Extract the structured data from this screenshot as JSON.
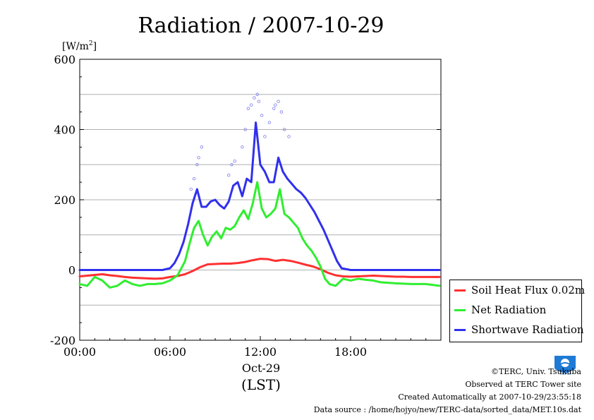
{
  "chart_data": {
    "type": "line",
    "title": "Radiation / 2007-10-29",
    "ylabel": "[W/m",
    "ylabel_sup": "2",
    "ylabel_close": "]",
    "xlabel": "Oct-29",
    "xlabel2": "(LST)",
    "ylim": [
      -200,
      600
    ],
    "xlim": [
      0,
      24
    ],
    "yticks": [
      -200,
      0,
      200,
      400,
      600
    ],
    "yticklabels": [
      "-200",
      "0",
      "200",
      "400",
      "600"
    ],
    "xticks": [
      0,
      6,
      12,
      18
    ],
    "xticklabels": [
      "00:00",
      "06:00",
      "12:00",
      "18:00"
    ],
    "grid": true,
    "legend_position": "bottom-right-outside",
    "series": [
      {
        "name": "Soil Heat Flux 0.02m",
        "color": "#ff3030",
        "x": [
          0,
          0.5,
          1,
          1.5,
          2,
          2.5,
          3,
          3.5,
          4,
          4.5,
          5,
          5.5,
          6,
          6.5,
          7,
          7.5,
          8,
          8.5,
          9,
          9.5,
          10,
          10.5,
          11,
          11.5,
          12,
          12.5,
          13,
          13.5,
          14,
          14.5,
          15,
          15.5,
          16,
          16.5,
          17,
          17.5,
          18,
          18.5,
          19,
          19.5,
          20,
          20.5,
          21,
          21.5,
          22,
          22.5,
          23,
          23.5,
          23.9
        ],
        "values": [
          -18,
          -16,
          -14,
          -12,
          -15,
          -17,
          -20,
          -22,
          -23,
          -24,
          -25,
          -24,
          -20,
          -17,
          -12,
          -3,
          8,
          16,
          17,
          18,
          18,
          20,
          23,
          28,
          32,
          31,
          26,
          29,
          26,
          21,
          15,
          10,
          2,
          -8,
          -15,
          -18,
          -19,
          -18,
          -17,
          -16,
          -17,
          -18,
          -19,
          -19,
          -20,
          -20,
          -20,
          -20,
          -20
        ]
      },
      {
        "name": "Net Radiation",
        "color": "#30ee30",
        "x": [
          0,
          0.5,
          1,
          1.5,
          2,
          2.5,
          3,
          3.5,
          4,
          4.5,
          5,
          5.5,
          6,
          6.5,
          7,
          7.3,
          7.6,
          7.9,
          8.2,
          8.5,
          8.8,
          9.1,
          9.4,
          9.7,
          10,
          10.3,
          10.6,
          10.9,
          11.2,
          11.5,
          11.8,
          12.1,
          12.4,
          12.7,
          13,
          13.3,
          13.6,
          13.9,
          14.2,
          14.5,
          14.8,
          15.1,
          15.4,
          15.7,
          16,
          16.3,
          16.6,
          17,
          17.5,
          18,
          18.5,
          19,
          19.5,
          20,
          21,
          22,
          23,
          23.9
        ],
        "values": [
          -40,
          -45,
          -20,
          -30,
          -50,
          -45,
          -30,
          -40,
          -45,
          -40,
          -40,
          -38,
          -30,
          -15,
          25,
          75,
          120,
          140,
          100,
          70,
          95,
          110,
          90,
          120,
          115,
          125,
          150,
          170,
          145,
          190,
          250,
          175,
          150,
          160,
          175,
          230,
          160,
          150,
          135,
          120,
          90,
          70,
          55,
          35,
          10,
          -25,
          -40,
          -45,
          -25,
          -30,
          -25,
          -28,
          -30,
          -35,
          -38,
          -40,
          -40,
          -45
        ]
      },
      {
        "name": "Shortwave Radiation",
        "color": "#3030ee",
        "x": [
          0,
          1,
          2,
          3,
          4,
          5,
          5.5,
          6,
          6.3,
          6.6,
          6.9,
          7.2,
          7.5,
          7.8,
          8.1,
          8.4,
          8.7,
          9,
          9.3,
          9.6,
          9.9,
          10.2,
          10.5,
          10.8,
          11.1,
          11.4,
          11.7,
          12,
          12.3,
          12.6,
          12.9,
          13.2,
          13.5,
          13.8,
          14.1,
          14.4,
          14.7,
          15,
          15.3,
          15.6,
          15.9,
          16.2,
          16.5,
          16.8,
          17.1,
          17.4,
          18,
          19,
          20,
          21,
          22,
          23,
          23.9
        ],
        "values": [
          0,
          0,
          0,
          0,
          0,
          0,
          0,
          5,
          20,
          45,
          80,
          130,
          190,
          230,
          180,
          180,
          195,
          200,
          185,
          175,
          195,
          240,
          250,
          210,
          260,
          250,
          420,
          300,
          280,
          250,
          250,
          320,
          280,
          260,
          245,
          230,
          220,
          205,
          185,
          165,
          140,
          115,
          85,
          55,
          25,
          5,
          0,
          0,
          0,
          0,
          0,
          0,
          0
        ]
      }
    ],
    "scatter_overlay": {
      "color": "#7a7aee",
      "x": [
        7.4,
        7.6,
        7.8,
        7.9,
        8.1,
        9.9,
        10.1,
        10.3,
        10.8,
        11.0,
        11.2,
        11.4,
        11.6,
        11.8,
        11.9,
        12.1,
        12.3,
        12.6,
        12.9,
        13.0,
        13.2,
        13.4,
        13.6,
        13.9
      ],
      "values": [
        230,
        260,
        300,
        320,
        350,
        270,
        300,
        310,
        350,
        400,
        460,
        470,
        490,
        500,
        480,
        440,
        380,
        420,
        460,
        470,
        480,
        450,
        400,
        380
      ]
    }
  },
  "footer": {
    "copyright": "©TERC, Univ. Tsukuba",
    "observed": "Observed at TERC Tower site",
    "created": "Created Automatically at 2007-10-29/23:55:18",
    "source": "Data source : /home/hojyo/new/TERC-data/sorted_data/MET.10s.dat"
  },
  "logo_text": "TERC"
}
